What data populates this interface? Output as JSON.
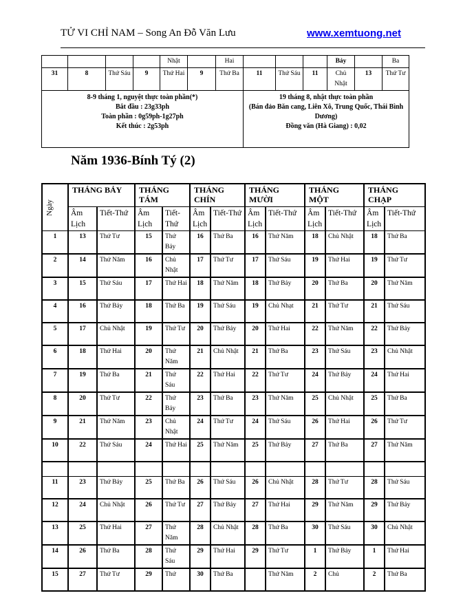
{
  "header": {
    "title": "TỬ VI CHỈ NAM – Song An Đỗ Văn Lưu",
    "website": "www.xemtuong.net"
  },
  "top_table": {
    "row_partial": [
      "",
      "",
      "",
      "",
      "Nhật",
      "",
      "Hai",
      "",
      "",
      "",
      "Bảy",
      "",
      "Ba"
    ],
    "row_31": [
      "31",
      "8",
      "Thứ Sáu",
      "9",
      "Thứ Hai",
      "9",
      "Thứ Ba",
      "11",
      "Thứ Sáu",
      "11",
      "Chủ Nhật",
      "13",
      "Thứ Tư"
    ],
    "note_left": [
      "8-9  tháng 1, nguyệt thực toàn phần(*)",
      "Bắt đầu : 23g33ph",
      "Toàn phần : 0g59ph-1g27ph",
      "Kết thúc : 2g53ph"
    ],
    "note_right": [
      "19 tháng 8, nhật thực toàn phần",
      "(Bán đảo Băn cang, Liên Xô, Trung Quốc, Thái Bình Dương)",
      "Đồng văn (Hà Giang) : 0,02"
    ]
  },
  "section_title": "Năm 1936-Bính Tý (2)",
  "main_table": {
    "day_header": "Ngày",
    "months": [
      "THÁNG BẢY",
      "THÁNG TÁM",
      "THÁNG CHÍN",
      "THÁNG MƯỜI",
      "THÁNG MỘT",
      "THÁNG CHẠP"
    ],
    "sub_headers": [
      [
        "Âm Lịch",
        "Tiết-Thứ"
      ],
      [
        "Âm Lịch",
        "Tiết-Thứ"
      ],
      [
        "Âm Lịch",
        "Tiết-Thứ"
      ],
      [
        "Âm Lịch",
        "Tiết-Thứ"
      ],
      [
        "Âm Lịch",
        "Tiết-Thứ"
      ],
      [
        "Âm Lịch",
        "Tiết-Thứ"
      ]
    ],
    "rows": [
      [
        "1",
        "13",
        "Thứ Tư",
        "15",
        "Thứ Bảy",
        "16",
        "Thứ Ba",
        "16",
        "Thứ Năm",
        "18",
        "Chủ Nhật",
        "18",
        "Thứ Ba"
      ],
      [
        "2",
        "14",
        "Thứ Năm",
        "16",
        "Chủ Nhật",
        "17",
        "Thứ Tư",
        "17",
        "Thứ Sáu",
        "19",
        "Thứ Hai",
        "19",
        "Thứ Tư"
      ],
      [
        "3",
        "15",
        "Thứ Sáu",
        "17",
        "Thứ Hai",
        "18",
        "Thứ Năm",
        "18",
        "Thứ Bảy",
        "20",
        "Thứ Ba",
        "20",
        "Thứ Năm"
      ],
      [
        "4",
        "16",
        "Thứ Bảy",
        "18",
        "Thứ Ba",
        "19",
        "Thứ Sáu",
        "19",
        "Chủ Nhạt",
        "21",
        "Thứ Tư",
        "21",
        "Thứ Sáu"
      ],
      [
        "5",
        "17",
        "Chủ Nhật",
        "19",
        "Thứ Tư",
        "20",
        "Thứ Bảy",
        "20",
        "Thứ Hai",
        "22",
        "Thứ Năm",
        "22",
        "Thứ Bảy"
      ],
      [
        "6",
        "18",
        "Thứ Hai",
        "20",
        "Thứ Năm",
        "21",
        "Chủ Nhật",
        "21",
        "Thứ Ba",
        "23",
        "Thứ Sáu",
        "23",
        "Chủ Nhật"
      ],
      [
        "7",
        "19",
        "Thứ Ba",
        "21",
        "Thứ Sáu",
        "22",
        "Thứ Hai",
        "22",
        "Thứ Tư",
        "24",
        "Thứ Bảy",
        "24",
        "Thứ Hai"
      ],
      [
        "8",
        "20",
        "Thứ Tư",
        "22",
        "Thứ Bảy",
        "23",
        "Thứ Ba",
        "23",
        "Thứ Năm",
        "25",
        "Chủ Nhật",
        "25",
        "Thứ Ba"
      ],
      [
        "9",
        "21",
        "Thứ Năm",
        "23",
        "Chủ Nhật",
        "24",
        "Thứ Tư",
        "24",
        "Thứ Sáu",
        "26",
        "Thứ Hai",
        "26",
        "Thứ Tư"
      ],
      [
        "10",
        "22",
        "Thứ Sáu",
        "24",
        "Thứ Hai",
        "25",
        "Thứ Năm",
        "25",
        "Thứ Bảy",
        "27",
        "Thứ Ba",
        "27",
        "Thứ Năm"
      ],
      [
        "",
        "",
        "",
        "",
        "",
        "",
        "",
        "",
        "",
        "",
        "",
        "",
        ""
      ],
      [
        "11",
        "23",
        "Thứ Bảy",
        "25",
        "Thứ Ba",
        "26",
        "Thứ Sáu",
        "26",
        "Chủ Nhật",
        "28",
        "Thứ Tư",
        "28",
        "Thứ Sáu"
      ],
      [
        "12",
        "24",
        "Chủ Nhật",
        "26",
        "Thứ Tư",
        "27",
        "Thứ Bảy",
        "27",
        "Thứ Hai",
        "29",
        "Thứ Năm",
        "29",
        "Thứ Bảy"
      ],
      [
        "13",
        "25",
        "Thứ Hai",
        "27",
        "Thứ Năm",
        "28",
        "Chủ Nhật",
        "28",
        "Thứ Ba",
        "30",
        "Thứ Sáu",
        "30",
        "Chủ Nhật"
      ],
      [
        "14",
        "26",
        "Thứ Ba",
        "28",
        "Thứ Sáu",
        "29",
        "Thứ Hai",
        "29",
        "Thứ Tư",
        "1",
        "Thứ Bảy",
        "1",
        "Thứ Hai"
      ],
      [
        "15",
        "27",
        "Thứ Tư",
        "29",
        "Thứ",
        "30",
        "Thứ Ba",
        "",
        "Thứ Năm",
        "2",
        "Chủ",
        "2",
        "Thứ Ba"
      ]
    ]
  }
}
